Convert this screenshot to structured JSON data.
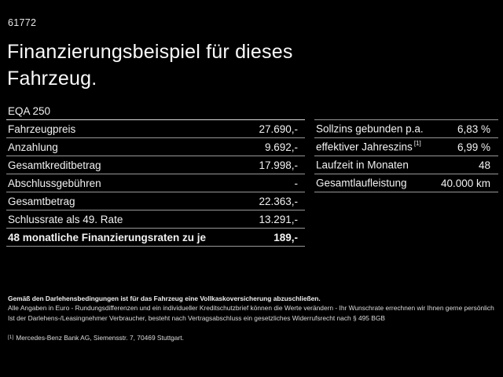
{
  "page": {
    "doc_number": "61772",
    "title": "Finanzierungsbeispiel für dieses Fahrzeug.",
    "title_line1": "Finanzierungsbeispiel für dieses",
    "title_line2": "Fahrzeug.",
    "model": "EQA 250"
  },
  "finance_table": {
    "rows": [
      {
        "label": "Fahrzeugpreis",
        "value": "27.690,-"
      },
      {
        "label": "Anzahlung",
        "value": "9.692,-"
      },
      {
        "label": "Gesamtkreditbetrag",
        "value": "17.998,-"
      },
      {
        "label": "Abschlussgebühren",
        "value": "-"
      },
      {
        "label": "Gesamtbetrag",
        "value": "22.363,-"
      },
      {
        "label": "Schlussrate als 49. Rate",
        "value": "13.291,-"
      }
    ],
    "highlight_row": {
      "label": "48 monatliche Finanzierungsraten zu je",
      "value": "189,-"
    }
  },
  "conditions_table": {
    "rows": [
      {
        "label": "Sollzins gebunden p.a.",
        "sup": "",
        "value": "6,83 %"
      },
      {
        "label": "effektiver Jahreszins",
        "sup": "[1]",
        "value": "6,99 %"
      },
      {
        "label": "Laufzeit in Monaten",
        "sup": "",
        "value": "48"
      },
      {
        "label": "Gesamtlaufleistung",
        "sup": "",
        "value": "40.000 km"
      }
    ]
  },
  "footer": {
    "bold_note": "Gemäß den Darlehensbedingungen ist für das Fahrzeug eine Vollkaskoversicherung abzuschließen.",
    "note_line1": "Alle Angaben in Euro - Rundungsdifferenzen und ein individueller Kreditschutzbrief können die Werte verändern - Ihr Wunschrate errechnen wir Ihnen gerne persönlich",
    "note_line2": "Ist der Darlehens-/Leasingnehmer Verbraucher, besteht nach Vertragsabschluss ein gesetzliches Widerrufsrecht nach § 495 BGB",
    "footnote_marker": "[1]",
    "footnote_text": "Mercedes-Benz Bank AG, Siemensstr. 7, 70469 Stuttgart."
  },
  "colors": {
    "background": "#000000",
    "text": "#f2f2f2",
    "divider": "#989898",
    "header_divider": "#dcdcdc"
  }
}
